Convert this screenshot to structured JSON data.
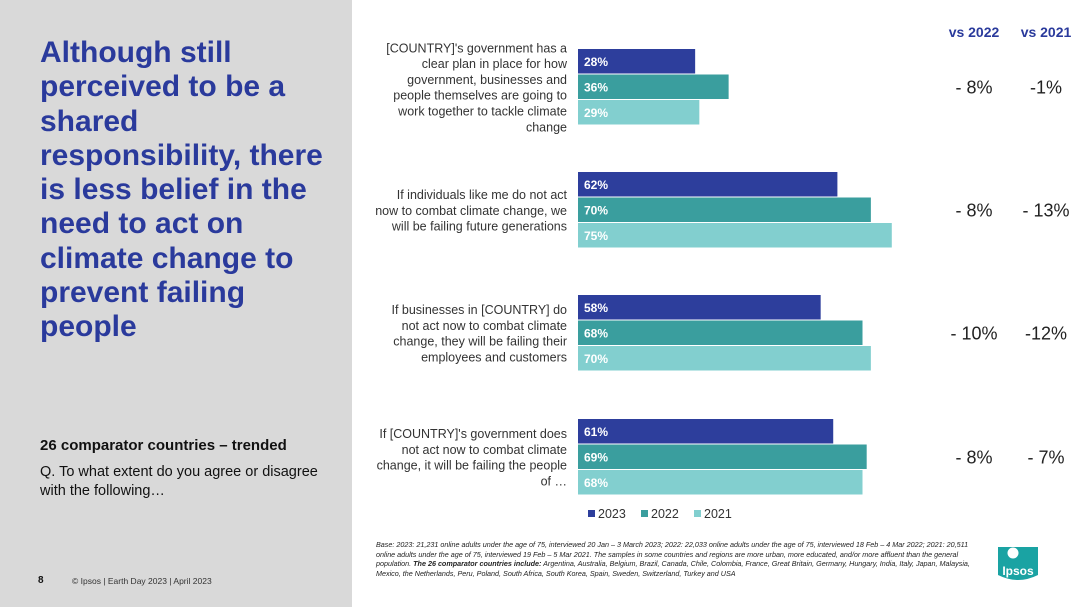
{
  "left_panel": {
    "headline": "Although still perceived to be a shared responsibility, there is less belief in the need to act on climate change to prevent failing people",
    "subtitle": "26 comparator countries – trended",
    "question": "Q. To what extent do you agree or disagree with the following…"
  },
  "footer": {
    "page_number": "8",
    "copyright": "© Ipsos | Earth Day 2023 | April 2023"
  },
  "base_note": {
    "text": "Base: 2023: 21,231 online adults under the age of 75, interviewed 20 Jan – 3 March 2023; 2022: 22,033 online adults under the age of 75, interviewed 18 Feb – 4 Mar 2022; 2021: 20,511 online adults under the age of 75, interviewed 19 Feb – 5 Mar 2021. The samples in some countries and regions are more urban, more educated, and/or more affluent than the general population.",
    "countries_label": "The 26 comparator countries include:",
    "countries": "Argentina, Australia, Belgium, Brazil, Canada, Chile, Colombia, France, Great Britain, Germany, Hungary, India, Italy, Japan, Malaysia, Mexico, the Netherlands, Peru, Poland, South Africa, South Korea, Spain, Sweden, Switzerland, Turkey and USA"
  },
  "logo": {
    "text": "Ipsos",
    "color": "#1aa3a3"
  },
  "chart_data": {
    "type": "bar",
    "orientation": "horizontal",
    "categories": [
      "[COUNTRY]'s government has a clear plan in place for how government, businesses and people themselves are going to work together to tackle climate change",
      "If individuals like me do not act now to combat climate change, we will be failing future generations",
      "If businesses in [COUNTRY] do not act now to combat climate change, they will be failing their employees and customers",
      "If [COUNTRY]'s government does not act now to combat climate change, it will be failing the people of …"
    ],
    "category_lines": [
      [
        "[COUNTRY]'s government has a",
        "clear plan in place for how",
        "government, businesses and",
        "people themselves are going to",
        "work together to tackle climate",
        "change"
      ],
      [
        "If individuals like me do not act",
        "now to combat climate change, we",
        "will be failing future generations"
      ],
      [
        "If businesses in [COUNTRY] do",
        "not act now to combat climate",
        "change, they will be failing their",
        "employees and customers"
      ],
      [
        "If [COUNTRY]'s government does",
        "not act now to combat climate",
        "change, it will be failing the people",
        "of …"
      ]
    ],
    "series": [
      {
        "name": "2023",
        "color": "#2d3e9c",
        "values": [
          28,
          62,
          58,
          61
        ],
        "labels": [
          "28%",
          "62%",
          "58%",
          "61%"
        ]
      },
      {
        "name": "2022",
        "color": "#3a9e9e",
        "values": [
          36,
          70,
          68,
          69
        ],
        "labels": [
          "36%",
          "70%",
          "68%",
          "69%"
        ]
      },
      {
        "name": "2021",
        "color": "#82cfcf",
        "values": [
          29,
          75,
          70,
          68
        ],
        "labels": [
          "29%",
          "75%",
          "70%",
          "68%"
        ]
      }
    ],
    "xlim": [
      0,
      87
    ],
    "comparison_headers": [
      "vs 2022",
      "vs 2021"
    ],
    "comparisons": [
      [
        "- 8%",
        "-1%"
      ],
      [
        "- 8%",
        "- 13%"
      ],
      [
        "- 10%",
        "-12%"
      ],
      [
        "- 8%",
        "- 7%"
      ]
    ],
    "legend": [
      "2023",
      "2022",
      "2021"
    ],
    "legend_position": "bottom"
  }
}
